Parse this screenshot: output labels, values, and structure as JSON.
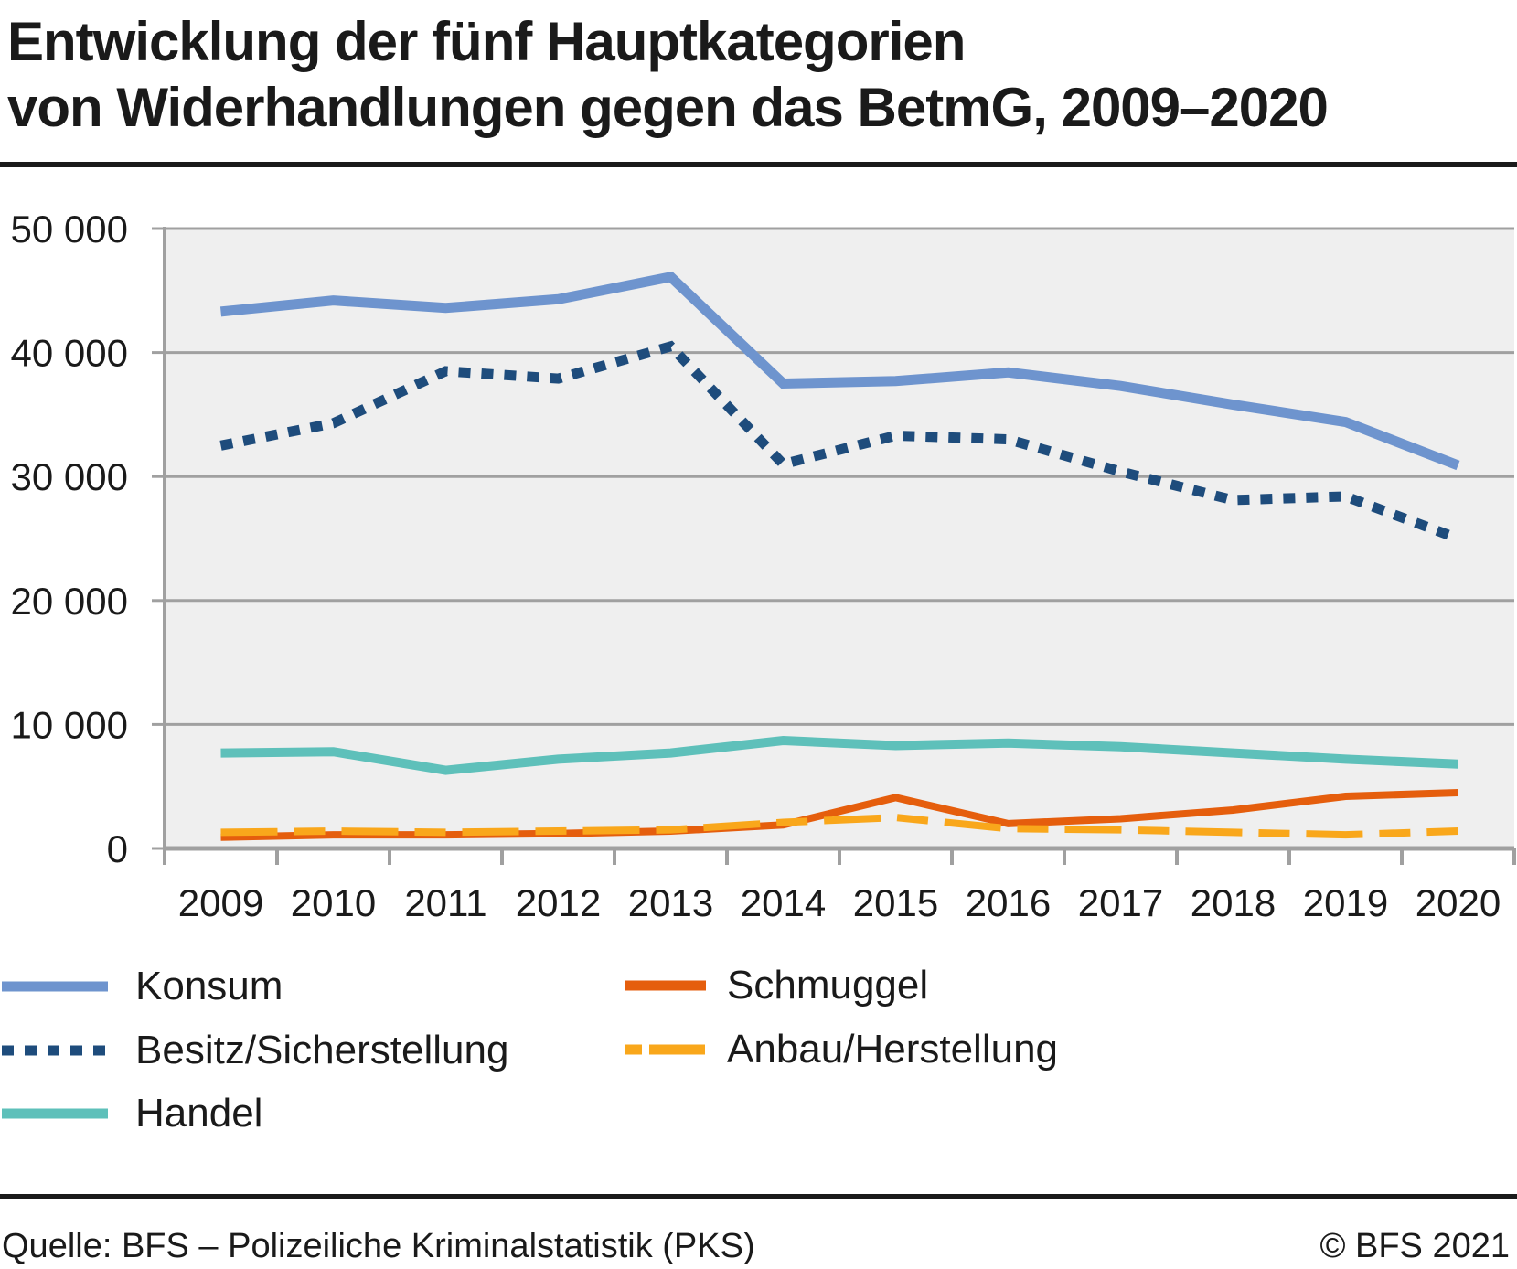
{
  "title": {
    "line1": "Entwicklung der fünf Hauptkategorien",
    "line2": "von Widerhandlungen gegen das BetmG, 2009–2020"
  },
  "footer": {
    "source": "Quelle: BFS – Polizeiliche Kriminalstatistik (PKS)",
    "copyright": "© BFS 2021"
  },
  "chart_data": {
    "type": "line",
    "title": "Entwicklung der fünf Hauptkategorien von Widerhandlungen gegen das BetmG, 2009–2020",
    "categories": [
      "2009",
      "2010",
      "2011",
      "2012",
      "2013",
      "2014",
      "2015",
      "2016",
      "2017",
      "2018",
      "2019",
      "2020"
    ],
    "ylim": [
      0,
      50000
    ],
    "grid": true,
    "legend_position": "bottom",
    "yticks": [
      {
        "value": 0,
        "label": "0"
      },
      {
        "value": 10000,
        "label": "10 000"
      },
      {
        "value": 20000,
        "label": "20 000"
      },
      {
        "value": 30000,
        "label": "30 000"
      },
      {
        "value": 40000,
        "label": "40 000"
      },
      {
        "value": 50000,
        "label": "50 000"
      }
    ],
    "series": [
      {
        "name": "Konsum",
        "color": "#6e94ce",
        "line": "solid",
        "width": 11,
        "legend_column": 0,
        "values": [
          43300,
          44200,
          43600,
          44300,
          46100,
          37500,
          37700,
          38400,
          37300,
          35800,
          34400,
          30900
        ]
      },
      {
        "name": "Besitz/Sicherstellung",
        "color": "#1e4c7c",
        "line": "dotted",
        "width": 11,
        "legend_column": 0,
        "values": [
          32500,
          34300,
          38500,
          37900,
          40500,
          31000,
          33300,
          33000,
          30400,
          28100,
          28400,
          25000
        ]
      },
      {
        "name": "Handel",
        "color": "#5ec0ba",
        "line": "solid",
        "width": 10,
        "legend_column": 0,
        "values": [
          7700,
          7800,
          6300,
          7200,
          7700,
          8700,
          8300,
          8500,
          8200,
          7700,
          7200,
          6800
        ]
      },
      {
        "name": "Schmuggel",
        "color": "#e55e0d",
        "line": "solid",
        "width": 8,
        "legend_column": 1,
        "values": [
          900,
          1100,
          1100,
          1200,
          1400,
          1900,
          4100,
          2000,
          2400,
          3100,
          4200,
          4500
        ]
      },
      {
        "name": "Anbau/Herstellung",
        "color": "#f9a71b",
        "line": "dashed",
        "width": 8,
        "legend_column": 1,
        "values": [
          1300,
          1400,
          1300,
          1400,
          1500,
          2100,
          2500,
          1600,
          1500,
          1300,
          1100,
          1400
        ]
      }
    ],
    "colors": {
      "plot_bg": "#efefef",
      "grid": "#a0a0a0",
      "text": "#1a1a1a"
    }
  }
}
